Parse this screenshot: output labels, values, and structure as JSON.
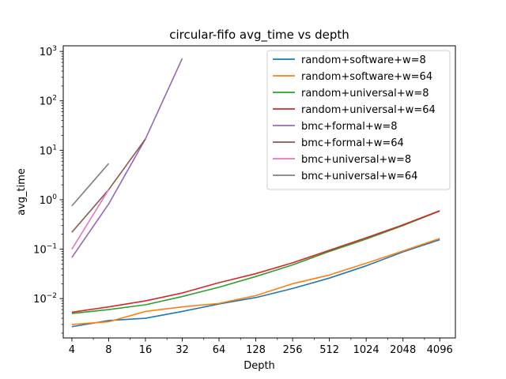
{
  "chart_data": {
    "type": "line",
    "title": "circular-fifo avg_time vs depth",
    "xlabel": "Depth",
    "ylabel": "avg_time",
    "x_scale": "log2",
    "y_scale": "log10",
    "xlim": [
      3.4,
      5500
    ],
    "ylim": [
      0.0016,
      1300
    ],
    "x_ticks": [
      4,
      8,
      16,
      32,
      64,
      128,
      256,
      512,
      1024,
      2048,
      4096
    ],
    "x_tick_labels": [
      "4",
      "8",
      "16",
      "32",
      "64",
      "128",
      "256",
      "512",
      "1024",
      "2048",
      "4096"
    ],
    "y_ticks": [
      0.01,
      0.1,
      1,
      10,
      100,
      1000
    ],
    "y_tick_base": "10",
    "y_tick_exponents": [
      "−2",
      "−1",
      "0",
      "1",
      "2",
      "3"
    ],
    "grid": false,
    "legend_position": "top-right",
    "series": [
      {
        "name": "random+software+w=8",
        "color": "#1f77b4",
        "x": [
          4,
          8,
          16,
          32,
          64,
          128,
          256,
          512,
          1024,
          2048,
          4096
        ],
        "y": [
          0.0027,
          0.0036,
          0.004,
          0.0055,
          0.0078,
          0.0105,
          0.016,
          0.026,
          0.046,
          0.088,
          0.155
        ]
      },
      {
        "name": "random+software+w=64",
        "color": "#ff7f0e",
        "x": [
          4,
          8,
          16,
          32,
          64,
          128,
          256,
          512,
          1024,
          2048,
          4096
        ],
        "y": [
          0.003,
          0.0034,
          0.0055,
          0.0068,
          0.008,
          0.0115,
          0.02,
          0.03,
          0.052,
          0.092,
          0.165
        ]
      },
      {
        "name": "random+universal+w=8",
        "color": "#2ca02c",
        "x": [
          4,
          8,
          16,
          32,
          64,
          128,
          256,
          512,
          1024,
          2048,
          4096
        ],
        "y": [
          0.005,
          0.006,
          0.0075,
          0.011,
          0.017,
          0.028,
          0.048,
          0.09,
          0.16,
          0.3,
          0.59
        ]
      },
      {
        "name": "random+universal+w=64",
        "color": "#d62728",
        "x": [
          4,
          8,
          16,
          32,
          64,
          128,
          256,
          512,
          1024,
          2048,
          4096
        ],
        "y": [
          0.0053,
          0.0068,
          0.009,
          0.013,
          0.021,
          0.032,
          0.053,
          0.095,
          0.17,
          0.31,
          0.6
        ]
      },
      {
        "name": "bmc+formal+w=8",
        "color": "#9467bd",
        "x": [
          4,
          8,
          16,
          32
        ],
        "y": [
          0.068,
          0.82,
          17,
          720
        ]
      },
      {
        "name": "bmc+formal+w=64",
        "color": "#8c564b",
        "x": [
          4,
          8,
          16
        ],
        "y": [
          0.22,
          1.6,
          17
        ]
      },
      {
        "name": "bmc+universal+w=8",
        "color": "#e377c2",
        "x": [
          4,
          8
        ],
        "y": [
          0.1,
          1.6
        ]
      },
      {
        "name": "bmc+universal+w=64",
        "color": "#7f7f7f",
        "x": [
          4,
          8
        ],
        "y": [
          0.75,
          5.4
        ]
      }
    ]
  }
}
